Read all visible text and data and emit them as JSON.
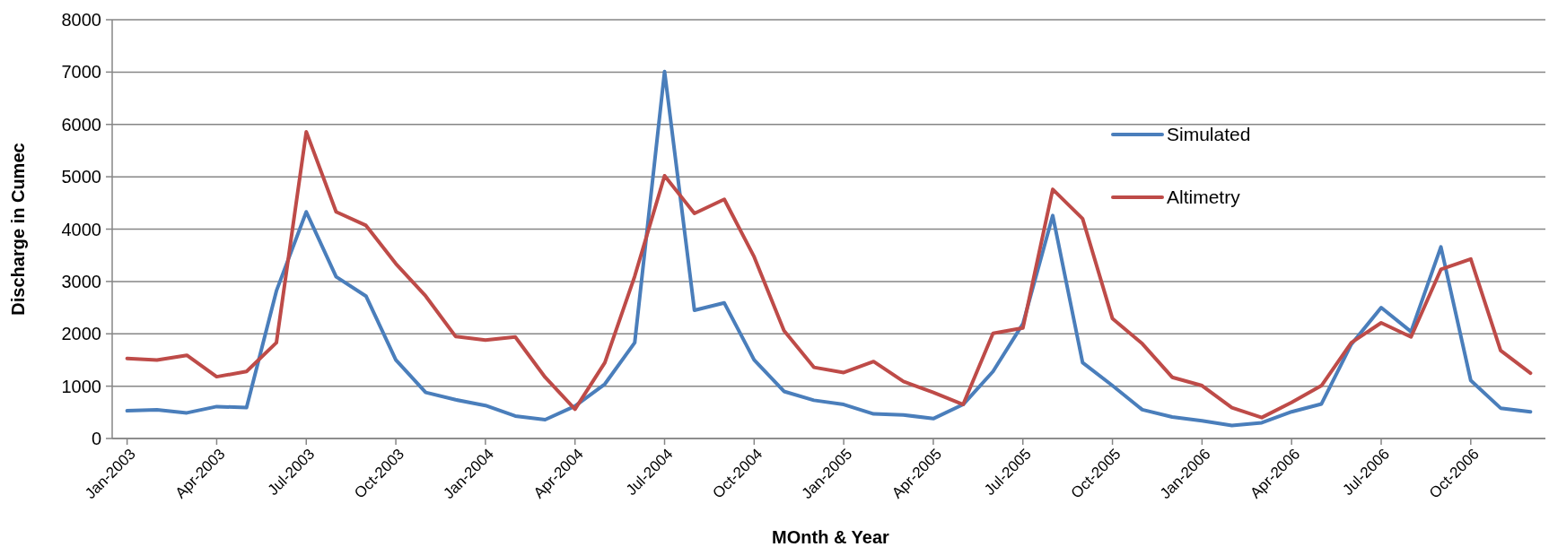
{
  "chart_data": {
    "type": "line",
    "xlabel": "MOnth & Year",
    "ylabel": "Discharge in Cumec",
    "categories": [
      "Jan-2003",
      null,
      null,
      "Apr-2003",
      null,
      null,
      "Jul-2003",
      null,
      null,
      "Oct-2003",
      null,
      null,
      "Jan-2004",
      null,
      null,
      "Apr-2004",
      null,
      null,
      "Jul-2004",
      null,
      null,
      "Oct-2004",
      null,
      null,
      "Jan-2005",
      null,
      null,
      "Apr-2005",
      null,
      null,
      "Jul-2005",
      null,
      null,
      "Oct-2005",
      null,
      null,
      "Jan-2006",
      null,
      null,
      "Apr-2006",
      null,
      null,
      "Jul-2006",
      null,
      null,
      "Oct-2006",
      null,
      null
    ],
    "series": [
      {
        "name": "Simulated",
        "color": "#4a7ebb",
        "values": [
          530,
          550,
          490,
          610,
          590,
          2820,
          4330,
          3090,
          2720,
          1500,
          880,
          740,
          630,
          430,
          360,
          620,
          1040,
          1830,
          7010,
          2450,
          2590,
          1500,
          900,
          730,
          650,
          470,
          450,
          380,
          650,
          1280,
          2190,
          4260,
          1450,
          1010,
          550,
          410,
          340,
          250,
          300,
          510,
          660,
          1800,
          2500,
          2040,
          3660,
          1110,
          580,
          510
        ]
      },
      {
        "name": "Altimetry",
        "color": "#be4b48",
        "values": [
          1530,
          1500,
          1590,
          1180,
          1280,
          1830,
          5860,
          4330,
          4070,
          3340,
          2720,
          1950,
          1880,
          1940,
          1170,
          560,
          1450,
          3100,
          5020,
          4300,
          4570,
          3470,
          2060,
          1360,
          1260,
          1470,
          1090,
          880,
          650,
          2010,
          2110,
          4760,
          4200,
          2290,
          1810,
          1170,
          1010,
          590,
          400,
          690,
          1010,
          1830,
          2210,
          1940,
          3230,
          3430,
          1680,
          1250
        ]
      }
    ],
    "ylim": [
      0,
      8000
    ],
    "yticks": [
      0,
      1000,
      2000,
      3000,
      4000,
      5000,
      6000,
      7000,
      8000
    ],
    "grid": "y",
    "legend": "right",
    "line_style": "solid"
  }
}
